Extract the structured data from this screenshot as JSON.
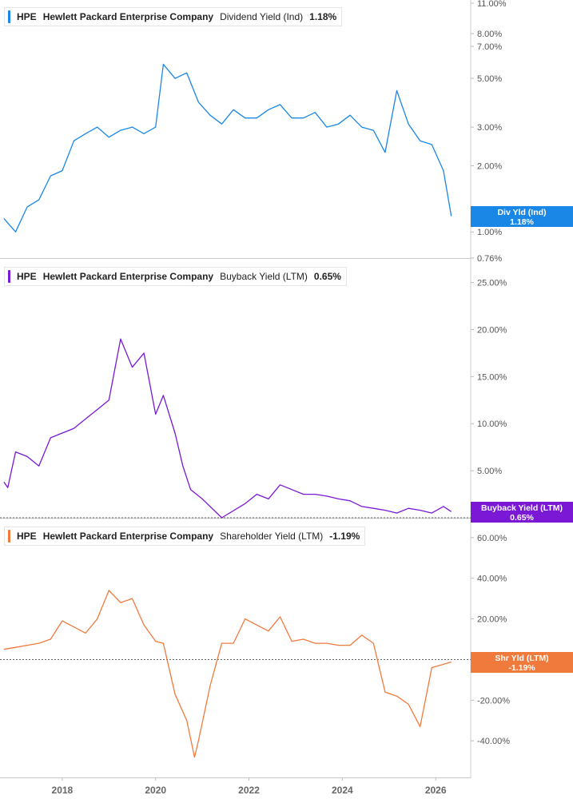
{
  "chart_data": [
    {
      "type": "line",
      "ticker": "HPE",
      "company": "Hewlett Packard Enterprise Company",
      "metric": "Dividend Yield (Ind)",
      "value_label": "1.18%",
      "flag_label": "Div Yld (Ind)",
      "flag_value": "1.18%",
      "color": "#1a87e6",
      "scale": "log",
      "ylim": [
        0.76,
        11.0
      ],
      "y_ticks": [
        "11.00%",
        "8.00%",
        "7.00%",
        "5.00%",
        "3.00%",
        "2.00%",
        "1.00%",
        "0.76%"
      ],
      "y_tick_values": [
        11.0,
        8.0,
        7.0,
        5.0,
        3.0,
        2.0,
        1.0,
        0.76
      ],
      "zero_line": false,
      "x": [
        "2016-10",
        "2017-01",
        "2017-04",
        "2017-07",
        "2017-10",
        "2018-01",
        "2018-04",
        "2018-07",
        "2018-10",
        "2019-01",
        "2019-04",
        "2019-07",
        "2019-10",
        "2020-01",
        "2020-03",
        "2020-06",
        "2020-09",
        "2020-12",
        "2021-03",
        "2021-06",
        "2021-09",
        "2021-12",
        "2022-03",
        "2022-06",
        "2022-09",
        "2022-12",
        "2023-03",
        "2023-06",
        "2023-09",
        "2023-12",
        "2024-03",
        "2024-06",
        "2024-09",
        "2024-12",
        "2025-03",
        "2025-06",
        "2025-09",
        "2025-12",
        "2026-03",
        "2026-05"
      ],
      "values": [
        1.15,
        1.0,
        1.3,
        1.4,
        1.8,
        1.9,
        2.6,
        2.8,
        3.0,
        2.7,
        2.9,
        3.0,
        2.8,
        3.0,
        5.8,
        5.0,
        5.3,
        3.9,
        3.4,
        3.1,
        3.6,
        3.3,
        3.3,
        3.6,
        3.8,
        3.3,
        3.3,
        3.5,
        3.0,
        3.1,
        3.4,
        3.0,
        2.9,
        2.3,
        4.4,
        3.1,
        2.6,
        2.5,
        1.9,
        1.18
      ]
    },
    {
      "type": "line",
      "ticker": "HPE",
      "company": "Hewlett Packard Enterprise Company",
      "metric": "Buyback Yield (LTM)",
      "value_label": "0.65%",
      "flag_label": "Buyback Yield (LTM)",
      "flag_value": "0.65%",
      "color": "#7a18d6",
      "scale": "linear",
      "ylim": [
        0,
        27.0
      ],
      "y_ticks": [
        "25.00%",
        "20.00%",
        "15.00%",
        "10.00%",
        "5.00%"
      ],
      "y_tick_values": [
        25,
        20,
        15,
        10,
        5
      ],
      "zero_line": true,
      "x": [
        "2016-10",
        "2016-11",
        "2017-01",
        "2017-04",
        "2017-07",
        "2017-10",
        "2018-01",
        "2018-04",
        "2018-07",
        "2018-10",
        "2019-01",
        "2019-04",
        "2019-07",
        "2019-10",
        "2020-01",
        "2020-03",
        "2020-06",
        "2020-08",
        "2020-10",
        "2021-01",
        "2021-06",
        "2021-12",
        "2022-03",
        "2022-06",
        "2022-09",
        "2022-12",
        "2023-03",
        "2023-06",
        "2023-09",
        "2023-12",
        "2024-03",
        "2024-06",
        "2024-09",
        "2024-12",
        "2025-03",
        "2025-06",
        "2025-09",
        "2025-12",
        "2026-03",
        "2026-05"
      ],
      "values": [
        3.8,
        3.2,
        7.0,
        6.5,
        5.5,
        8.5,
        9.0,
        9.5,
        10.5,
        11.5,
        12.5,
        19.0,
        16.0,
        17.5,
        11.0,
        13.0,
        9.0,
        5.5,
        3.0,
        2.0,
        0.0,
        1.5,
        2.5,
        2.0,
        3.5,
        3.0,
        2.5,
        2.5,
        2.3,
        2.0,
        1.8,
        1.2,
        1.0,
        0.8,
        0.5,
        1.0,
        0.8,
        0.5,
        1.2,
        0.65
      ]
    },
    {
      "type": "line",
      "ticker": "HPE",
      "company": "Hewlett Packard Enterprise Company",
      "metric": "Shareholder Yield (LTM)",
      "value_label": "-1.19%",
      "flag_label": "Shr Yld (LTM)",
      "flag_value": "-1.19%",
      "color": "#f07a3c",
      "scale": "linear",
      "ylim": [
        -58.0,
        67.0
      ],
      "y_ticks": [
        "60.00%",
        "40.00%",
        "20.00%",
        "0.00%",
        "-20.00%",
        "-40.00%"
      ],
      "y_tick_values": [
        60,
        40,
        20,
        0,
        -20,
        -40
      ],
      "zero_line": true,
      "x": [
        "2016-10",
        "2017-01",
        "2017-04",
        "2017-07",
        "2017-10",
        "2018-01",
        "2018-04",
        "2018-07",
        "2018-10",
        "2019-01",
        "2019-04",
        "2019-07",
        "2019-10",
        "2020-01",
        "2020-03",
        "2020-06",
        "2020-09",
        "2020-11",
        "2020-12",
        "2021-03",
        "2021-06",
        "2021-09",
        "2021-12",
        "2022-03",
        "2022-06",
        "2022-09",
        "2022-12",
        "2023-03",
        "2023-06",
        "2023-09",
        "2023-12",
        "2024-03",
        "2024-06",
        "2024-09",
        "2024-12",
        "2025-03",
        "2025-06",
        "2025-09",
        "2025-12",
        "2026-05"
      ],
      "values": [
        5.0,
        6.0,
        7.0,
        8.0,
        10.0,
        19.0,
        16.0,
        13.0,
        20.0,
        34.0,
        28.0,
        30.0,
        17.0,
        9.0,
        8.0,
        -17.0,
        -30.0,
        -48.0,
        -40.0,
        -13.0,
        8.0,
        8.0,
        20.0,
        17.0,
        14.0,
        21.0,
        9.0,
        10.0,
        8.0,
        8.0,
        7.0,
        7.0,
        12.0,
        8.0,
        -16.0,
        -18.0,
        -22.0,
        -33.0,
        -4.0,
        -1.19
      ]
    }
  ],
  "x_axis": {
    "ticks": [
      "2018",
      "2020",
      "2022",
      "2024",
      "2026"
    ],
    "tick_values": [
      "2018-01",
      "2020-01",
      "2022-01",
      "2024-01",
      "2026-01"
    ],
    "range": [
      "2016-09",
      "2026-10"
    ]
  }
}
